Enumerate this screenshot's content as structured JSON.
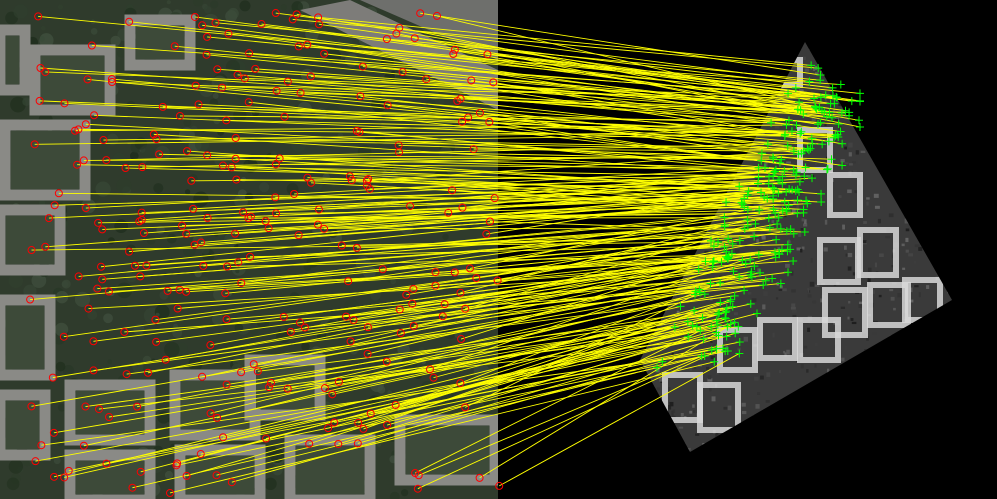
{
  "scene": {
    "description_kind": "feature-matching-visualization",
    "left_image": {
      "kind": "satellite-photo",
      "tone": "color"
    },
    "right_image": {
      "kind": "rotated-sar-image",
      "tone": "grayscale"
    }
  },
  "colors": {
    "background": "#000000",
    "match_line": "#ffff00",
    "left_keypoint": "#ff0000",
    "right_keypoint": "#00ff00",
    "left_vegetation": "#2f3b2c",
    "left_building": "#8a8a86",
    "left_road": "#9b9a97",
    "right_dark": "#2a2a2a",
    "right_bright": "#d8d8d8"
  },
  "markers": {
    "left_keypoint_shape": "circle-icon",
    "right_keypoint_shape": "plus-icon"
  },
  "matches": {
    "approximate_count": 260
  }
}
